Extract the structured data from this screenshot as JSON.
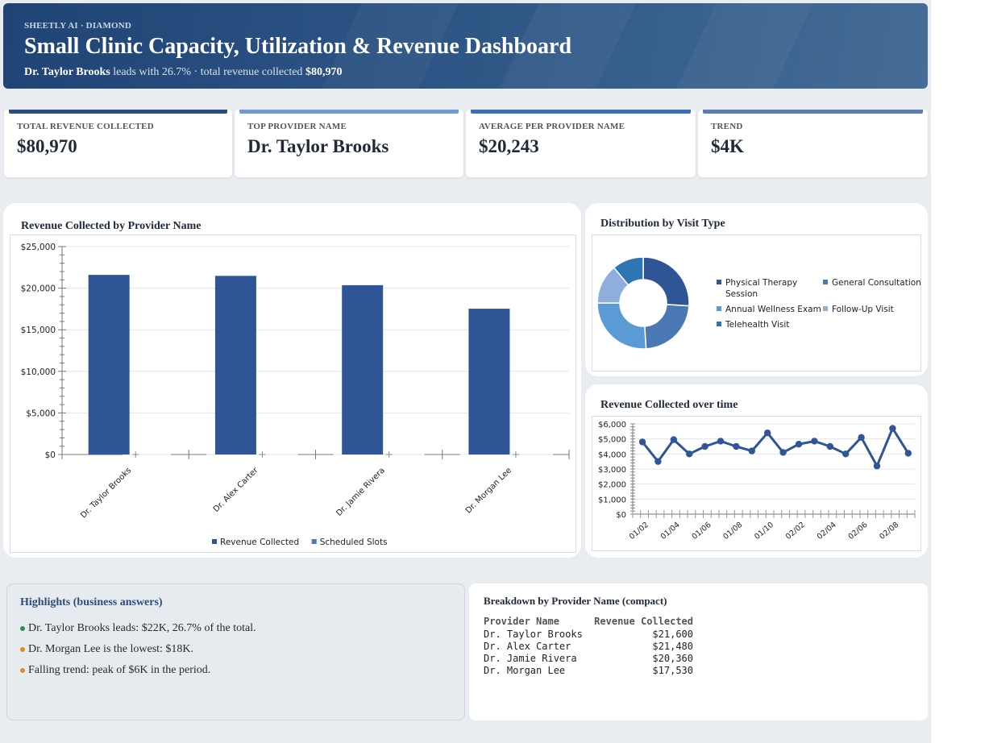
{
  "header": {
    "kicker": "SHEETLY AI · DIAMOND",
    "title": "Small Clinic Capacity, Utilization & Revenue Dashboard",
    "sub_leader": "Dr. Taylor Brooks",
    "sub_mid": " leads with 26.7% · total revenue collected ",
    "sub_total": "$80,970"
  },
  "kpis": [
    {
      "label": "TOTAL REVENUE COLLECTED",
      "value": "$80,970",
      "color": "#2b4d82"
    },
    {
      "label": "TOP PROVIDER NAME",
      "value": "Dr. Taylor Brooks",
      "color": "#6b9bd1"
    },
    {
      "label": "AVERAGE PER PROVIDER NAME",
      "value": "$20,243",
      "color": "#3c6eb0"
    },
    {
      "label": "TREND",
      "value": "$4K",
      "color": "#5a7fb0"
    }
  ],
  "bar_card": {
    "title": "Revenue Collected by Provider Name"
  },
  "donut_card": {
    "title": "Distribution by Visit Type"
  },
  "line_card": {
    "title": "Revenue Collected over time"
  },
  "chart_data": [
    {
      "type": "bar",
      "title": "Revenue Collected by Provider Name",
      "categories": [
        "Dr. Taylor Brooks",
        "Dr. Alex Carter",
        "Dr. Jamie Rivera",
        "Dr. Morgan Lee"
      ],
      "series": [
        {
          "name": "Revenue Collected",
          "values": [
            21600,
            21480,
            20360,
            17530
          ],
          "color": "#2f5597"
        },
        {
          "name": "Scheduled Slots",
          "values": [
            0,
            0,
            0,
            0
          ],
          "color": "#4a78b4"
        }
      ],
      "ylim": [
        0,
        25000
      ],
      "yticks": [
        "$0",
        "$5,000",
        "$10,000",
        "$15,000",
        "$20,000",
        "$25,000"
      ],
      "legend": "bottom",
      "grid": true
    },
    {
      "type": "pie",
      "title": "Distribution by Visit Type",
      "labels": [
        "Physical Therapy Session",
        "General Consultation",
        "Annual Wellness Exam",
        "Follow-Up Visit",
        "Telehealth Visit"
      ],
      "values": [
        26,
        23,
        26,
        14,
        11
      ],
      "colors": [
        "#2f5597",
        "#4a78b4",
        "#5b9bd5",
        "#8eaedd",
        "#2e75b6"
      ],
      "legend": "right"
    },
    {
      "type": "line",
      "title": "Revenue Collected over time",
      "x": [
        "01/02",
        "01/03",
        "01/04",
        "01/05",
        "01/06",
        "01/07",
        "01/08",
        "01/09",
        "01/10",
        "01/11",
        "02/02",
        "02/03",
        "02/04",
        "02/05",
        "02/06",
        "02/07",
        "02/08",
        "02/09"
      ],
      "xticks": [
        "01/02",
        "01/04",
        "01/06",
        "01/08",
        "01/10",
        "02/02",
        "02/04",
        "02/06",
        "02/08"
      ],
      "series": [
        {
          "name": "Revenue Collected",
          "values": [
            4800,
            3500,
            4950,
            4000,
            4500,
            4850,
            4500,
            4200,
            5400,
            4100,
            4650,
            4850,
            4500,
            4000,
            5100,
            3200,
            5700,
            4050
          ],
          "color": "#2f5597"
        }
      ],
      "ylim": [
        0,
        6000
      ],
      "yticks": [
        "$0",
        "$1,000",
        "$2,000",
        "$3,000",
        "$4,000",
        "$5,000",
        "$6,000"
      ],
      "grid": true
    }
  ],
  "highlights": {
    "title": "Highlights (business answers)",
    "items": [
      {
        "text": "Dr. Taylor Brooks leads: $22K, 26.7% of the total.",
        "color": "#2e8b57"
      },
      {
        "text": "Dr. Morgan Lee is the lowest: $18K.",
        "color": "#e08a1e"
      },
      {
        "text": "Falling trend: peak of $6K in the period.",
        "color": "#e08a1e"
      }
    ]
  },
  "breakdown": {
    "title": "Breakdown by Provider Name (compact)",
    "headers": [
      "Provider Name",
      "Revenue Collected"
    ],
    "rows": [
      [
        "Dr. Taylor Brooks",
        "$21,600"
      ],
      [
        "Dr. Alex Carter",
        "$21,480"
      ],
      [
        "Dr. Jamie Rivera",
        "$20,360"
      ],
      [
        "Dr. Morgan Lee",
        "$17,530"
      ]
    ]
  }
}
